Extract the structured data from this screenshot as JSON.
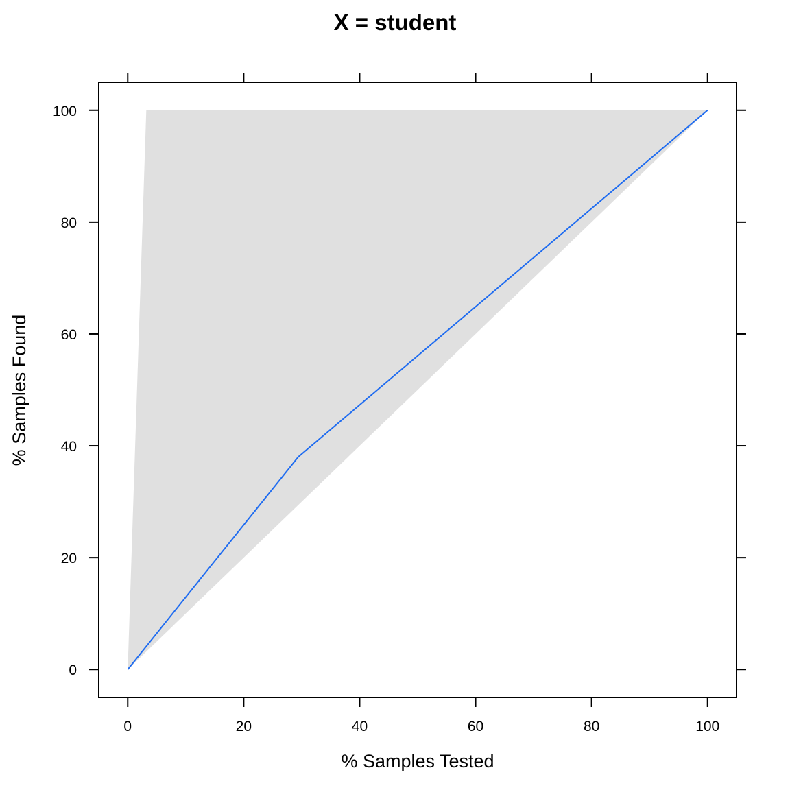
{
  "chart_data": {
    "type": "area",
    "title": "X = student",
    "xlabel": "% Samples Tested",
    "ylabel": "% Samples Found",
    "xlim": [
      -5,
      105
    ],
    "ylim": [
      -5,
      105
    ],
    "x_ticks": [
      0,
      20,
      40,
      60,
      80,
      100
    ],
    "y_ticks": [
      0,
      20,
      40,
      60,
      80,
      100
    ],
    "grid": false,
    "reference_band": {
      "upper": {
        "x": [
          0,
          3.2,
          100
        ],
        "y": [
          0,
          100,
          100
        ]
      },
      "lower": {
        "x": [
          0,
          100
        ],
        "y": [
          0,
          100
        ]
      }
    },
    "series": [
      {
        "x": [
          0,
          29.4,
          100
        ],
        "y": [
          0,
          38,
          100
        ]
      }
    ],
    "colors": {
      "band": "#e0e0e0",
      "line": "#1f6cf0",
      "axis": "#000000"
    }
  }
}
